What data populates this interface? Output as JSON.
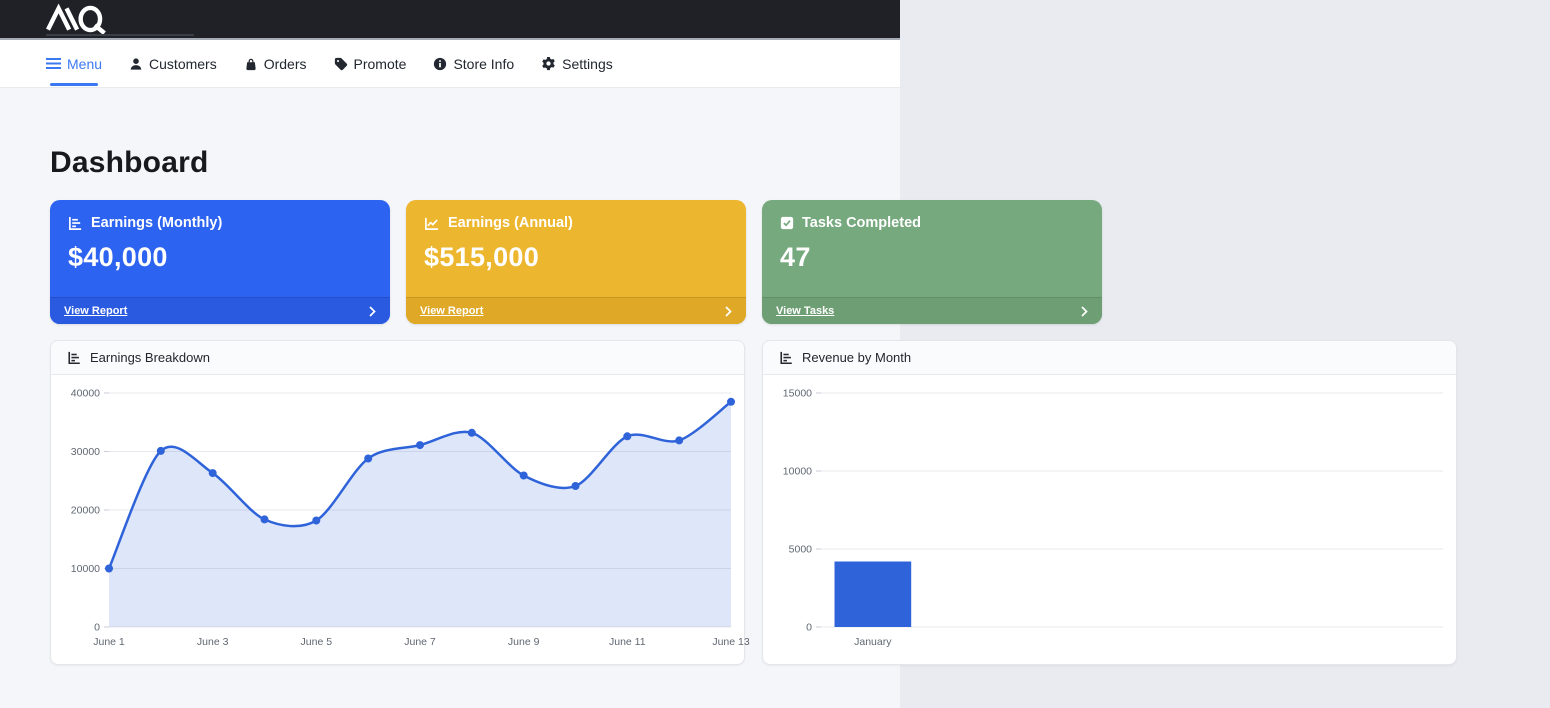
{
  "topbar": {
    "brand": "AQ"
  },
  "nav": {
    "items": [
      {
        "label": "Menu",
        "icon": "hamburger-icon",
        "active": true
      },
      {
        "label": "Customers",
        "icon": "person-icon",
        "active": false
      },
      {
        "label": "Orders",
        "icon": "bag-icon",
        "active": false
      },
      {
        "label": "Promote",
        "icon": "tag-icon",
        "active": false
      },
      {
        "label": "Store Info",
        "icon": "info-icon",
        "active": false
      },
      {
        "label": "Settings",
        "icon": "gear-icon",
        "active": false
      }
    ]
  },
  "page": {
    "title": "Dashboard"
  },
  "colors": {
    "primary_blue": "#2d63f1",
    "primary_blue_footer": "#2a5ae0",
    "warning_yellow": "#edb62f",
    "warning_yellow_footer": "#dfa827",
    "success_green": "#76a97e",
    "success_green_footer": "#6d9e74",
    "chart_blue": "#2f63d9",
    "topbar_black": "#1f2127",
    "page_bg": "#f4f6f9"
  },
  "stat_cards": [
    {
      "title": "Earnings (Monthly)",
      "value": "$40,000",
      "link": "View Report",
      "icon": "bar-steps-icon",
      "color": "#2d63f1",
      "footer_color": "#2a5ae0",
      "has_chevron": true
    },
    {
      "title": "Earnings (Annual)",
      "value": "$515,000",
      "link": "View Report",
      "icon": "line-graph-icon",
      "color": "#edb62f",
      "footer_color": "#dfa827",
      "has_chevron": true
    },
    {
      "title": "Tasks Completed",
      "value": "47",
      "link": "View Tasks",
      "icon": "check-square-icon",
      "color": "#76a97e",
      "footer_color": "#6d9e74",
      "has_chevron": true
    }
  ],
  "chart_data": [
    {
      "type": "area",
      "title": "Earnings Breakdown",
      "x": [
        "June 1",
        "June 2",
        "June 3",
        "June 4",
        "June 5",
        "June 6",
        "June 7",
        "June 8",
        "June 9",
        "June 10",
        "June 11",
        "June 12",
        "June 13"
      ],
      "values": [
        10000,
        30100,
        26300,
        18400,
        18200,
        28800,
        31100,
        33200,
        25900,
        24100,
        32600,
        31900,
        38500
      ],
      "ylim": [
        0,
        40000
      ],
      "yticks": [
        0,
        10000,
        20000,
        30000,
        40000
      ],
      "xtick_step": 2,
      "grid": true,
      "legend": "none",
      "line_color": "#2f63d9",
      "fill_color": "rgba(47,99,217,0.16)"
    },
    {
      "type": "bar",
      "title": "Revenue by Month",
      "categories": [
        "January"
      ],
      "values": [
        4200
      ],
      "ylim": [
        0,
        15000
      ],
      "yticks": [
        0,
        5000,
        10000,
        15000
      ],
      "grid": true,
      "legend": "none",
      "bar_color": "#2f63d9",
      "slots": 6
    }
  ]
}
